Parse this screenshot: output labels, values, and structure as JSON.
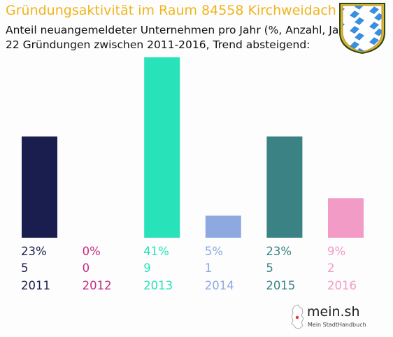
{
  "header": {
    "title": "Gründungsaktivität im Raum 84558 Kirchweidach",
    "subtitle_line1": "Anteil neuangemeldeter Unternehmen pro Jahr (%, Anzahl, Jahr)",
    "subtitle_line2": "22 Gründungen zwischen 2011-2016, Trend absteigend:"
  },
  "logo": {
    "name": "mein.sh",
    "tagline": "Mein StadtHandbuch"
  },
  "colors": {
    "title": "#f0b41c",
    "bavaria_blue": "#3a8ee0"
  },
  "chart_data": {
    "type": "bar",
    "categories": [
      "2011",
      "2012",
      "2013",
      "2014",
      "2015",
      "2016"
    ],
    "values": [
      23,
      0,
      41,
      5,
      23,
      9
    ],
    "counts": [
      5,
      0,
      9,
      1,
      5,
      2
    ],
    "percent_labels": [
      "23%",
      "0%",
      "41%",
      "5%",
      "23%",
      "9%"
    ],
    "colors": [
      "#1a1e4e",
      "#c52c7e",
      "#28e2b9",
      "#8ea8e0",
      "#3a8283",
      "#f29bc7"
    ],
    "ylim": [
      0,
      41
    ],
    "grid": false
  }
}
